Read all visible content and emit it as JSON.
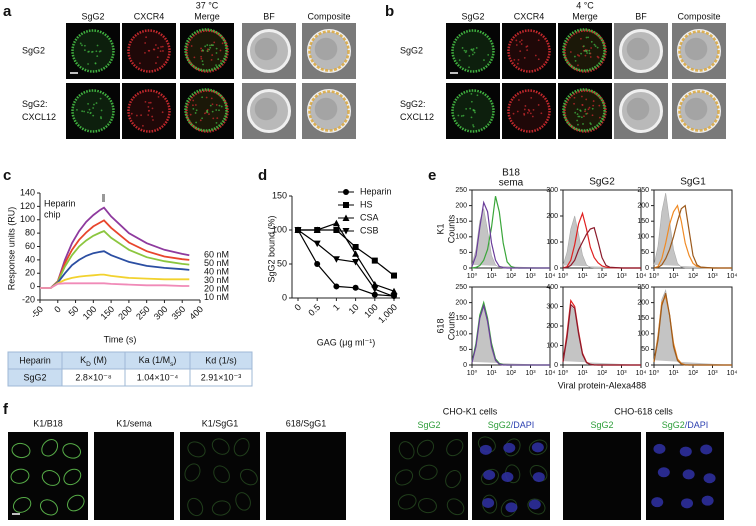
{
  "panels": {
    "a": {
      "letter": "a",
      "temperature": "37 °C",
      "columns": [
        "SgG2",
        "CXCR4",
        "Merge",
        "BF",
        "Composite"
      ],
      "column_colors": [
        "#2e9e3a",
        "#d6203a",
        "#111111",
        "#111111",
        "#111111"
      ],
      "rows": [
        [
          "SgG2"
        ],
        [
          "SgG2:",
          "CXCL12"
        ]
      ]
    },
    "b": {
      "letter": "b",
      "temperature": "4 °C",
      "columns": [
        "SgG2",
        "CXCR4",
        "Merge",
        "BF",
        "Composite"
      ],
      "column_colors": [
        "#2e9e3a",
        "#d6203a",
        "#111111",
        "#111111",
        "#111111"
      ],
      "rows": [
        [
          "SgG2"
        ],
        [
          "SgG2:",
          "CXCL12"
        ]
      ]
    },
    "c": {
      "letter": "c",
      "table": {
        "header": [
          "Heparin",
          [
            "K",
            "D",
            " (M)"
          ],
          [
            "Ka (1/M",
            "s",
            ")"
          ],
          "Kd (1/s)"
        ],
        "rows": [
          [
            "SgG2",
            "2.8×10⁻⁸",
            "1.04×10⁻⁴",
            "2.91×10⁻³"
          ]
        ]
      }
    },
    "d": {
      "letter": "d"
    },
    "e": {
      "letter": "e",
      "row_labels": [
        "K1",
        "618"
      ],
      "y_label": "Counts",
      "x_label": "Viral protein-Alexa488"
    },
    "f": {
      "letter": "f",
      "images": [
        "K1/B18",
        "K1/sema",
        "K1/SgG1",
        "618/SgG1"
      ],
      "groups": [
        {
          "title": "CHO-K1 cells",
          "columns": [
            [
              "SgG2"
            ],
            [
              "SgG2",
              "/DAPI"
            ]
          ]
        },
        {
          "title": "CHO-618 cells",
          "columns": [
            [
              "SgG2"
            ],
            [
              "SgG2",
              "/DAPI"
            ]
          ]
        }
      ]
    }
  },
  "chart_data": [
    {
      "type": "line",
      "annotation": [
        "Heparin",
        "chip"
      ],
      "x_label": "Time (s)",
      "y_label": "Response units (RU)",
      "xlim": [
        -50,
        400
      ],
      "xticks": [
        -50,
        0,
        50,
        100,
        150,
        200,
        250,
        300,
        350,
        400
      ],
      "ylim": [
        -20,
        140
      ],
      "yticks": [
        -20,
        0,
        20,
        40,
        60,
        80,
        100,
        120,
        140
      ],
      "x": [
        -50,
        -20,
        0,
        20,
        40,
        60,
        80,
        100,
        120,
        130,
        150,
        200,
        250,
        300,
        350,
        370
      ],
      "series": [
        {
          "name": "60 nM",
          "color": "#8e3a9e",
          "values": [
            -2,
            -2,
            8,
            40,
            65,
            83,
            97,
            107,
            115,
            118,
            105,
            80,
            65,
            55,
            49,
            47
          ]
        },
        {
          "name": "50 nM",
          "color": "#e8452c",
          "values": [
            -2,
            -2,
            8,
            35,
            55,
            70,
            81,
            90,
            96,
            99,
            88,
            66,
            53,
            45,
            41,
            40
          ]
        },
        {
          "name": "40 nM",
          "color": "#8cc63f",
          "values": [
            -2,
            -2,
            7,
            30,
            47,
            60,
            69,
            76,
            81,
            83,
            73,
            55,
            44,
            38,
            34,
            33
          ]
        },
        {
          "name": "30 nM",
          "color": "#2b4ea2",
          "values": [
            -2,
            -2,
            6,
            20,
            32,
            40,
            46,
            50,
            52,
            53,
            47,
            37,
            31,
            28,
            26,
            25
          ]
        },
        {
          "name": "20 nM",
          "color": "#f2d22e",
          "values": [
            -2,
            -2,
            5,
            10,
            13,
            15,
            16,
            17,
            18,
            18,
            16,
            13,
            12,
            11,
            11,
            11
          ]
        },
        {
          "name": "10 nM",
          "color": "#f08ab8",
          "values": [
            -2,
            -2,
            4,
            5,
            5,
            5,
            5,
            5,
            5,
            5,
            4,
            3,
            2,
            2,
            1,
            1
          ]
        }
      ]
    },
    {
      "type": "line",
      "x_label": "GAG (μg ml⁻¹)",
      "y_label": "SgG2 bound (%)",
      "categories": [
        "0",
        "0.5",
        "1",
        "10",
        "100",
        "1,000"
      ],
      "ylim": [
        0,
        150
      ],
      "yticks": [
        0,
        50,
        100,
        150
      ],
      "legend": "upper right",
      "series": [
        {
          "name": "Heparin",
          "color": "#000000",
          "marker": "circle",
          "values": [
            100,
            50,
            17,
            15,
            5,
            3
          ]
        },
        {
          "name": "HS",
          "color": "#000000",
          "marker": "square",
          "values": [
            100,
            100,
            100,
            75,
            55,
            33
          ]
        },
        {
          "name": "CSA",
          "color": "#000000",
          "marker": "triangle-up",
          "values": [
            100,
            100,
            110,
            65,
            20,
            10
          ]
        },
        {
          "name": "CSB",
          "color": "#000000",
          "marker": "triangle-down",
          "values": [
            100,
            80,
            57,
            53,
            13,
            2
          ]
        }
      ]
    },
    {
      "type": "density",
      "log_x": true,
      "xlim": [
        1,
        10000
      ],
      "xticks": [
        {
          "value": 1,
          "label": "10⁰"
        },
        {
          "value": 10,
          "label": "10¹"
        },
        {
          "value": 100,
          "label": "10²"
        },
        {
          "value": 1000,
          "label": "10³"
        },
        {
          "value": 10000,
          "label": "10⁴"
        }
      ],
      "ylim": [
        0,
        250
      ],
      "yticks": [
        0,
        50,
        100,
        150,
        200,
        250
      ],
      "x": [
        1,
        1.6,
        2.5,
        4,
        6.3,
        10,
        16,
        25,
        40,
        63,
        100,
        160,
        250,
        1000,
        10000
      ],
      "series": [
        {
          "color": "#c4c4c4",
          "fill": true,
          "values": [
            10,
            60,
            150,
            190,
            120,
            40,
            10,
            2,
            0,
            0,
            0,
            0,
            0,
            0,
            0
          ]
        },
        {
          "name": "B18",
          "color": "#3aa63a",
          "values": [
            0,
            2,
            8,
            25,
            60,
            130,
            230,
            180,
            80,
            20,
            5,
            1,
            0,
            0,
            0
          ]
        },
        {
          "name": "sema",
          "color": "#6a3d9a",
          "values": [
            5,
            40,
            130,
            210,
            180,
            80,
            25,
            5,
            1,
            0,
            0,
            0,
            0,
            0,
            0
          ]
        }
      ]
    },
    {
      "type": "density",
      "log_x": true,
      "title": "SgG2",
      "title_color": "#d6203a",
      "xlim": [
        1,
        10000
      ],
      "xticks": [
        {
          "value": 1,
          "label": "10⁰"
        },
        {
          "value": 10,
          "label": "10¹"
        },
        {
          "value": 100,
          "label": "10²"
        },
        {
          "value": 1000,
          "label": "10³"
        },
        {
          "value": 10000,
          "label": "10⁴"
        }
      ],
      "ylim": [
        0,
        300
      ],
      "yticks": [
        0,
        100,
        200,
        300
      ],
      "x": [
        1,
        1.6,
        2.5,
        4,
        6.3,
        10,
        16,
        25,
        40,
        63,
        100,
        160,
        250,
        1000,
        10000
      ],
      "series": [
        {
          "color": "#c4c4c4",
          "fill": true,
          "values": [
            10,
            60,
            150,
            200,
            130,
            50,
            12,
            2,
            0,
            0,
            0,
            0,
            0,
            0,
            0
          ]
        },
        {
          "color": "#e02020",
          "values": [
            0,
            5,
            30,
            90,
            170,
            210,
            150,
            80,
            40,
            20,
            8,
            3,
            1,
            0,
            0
          ]
        },
        {
          "color": "#8b1a2b",
          "values": [
            0,
            2,
            10,
            30,
            70,
            100,
            130,
            150,
            155,
            100,
            40,
            10,
            3,
            0,
            0
          ]
        }
      ]
    },
    {
      "type": "density",
      "log_x": true,
      "title": "SgG1",
      "title_color": "#e07a1c",
      "xlim": [
        1,
        10000
      ],
      "xticks": [
        {
          "value": 1,
          "label": "10⁰"
        },
        {
          "value": 10,
          "label": "10¹"
        },
        {
          "value": 100,
          "label": "10²"
        },
        {
          "value": 1000,
          "label": "10³"
        },
        {
          "value": 10000,
          "label": "10⁴"
        }
      ],
      "ylim": [
        0,
        250
      ],
      "yticks": [
        0,
        50,
        100,
        150,
        200,
        250
      ],
      "x": [
        1,
        1.6,
        2.5,
        4,
        6.3,
        10,
        16,
        25,
        40,
        63,
        100,
        160,
        250,
        1000,
        10000
      ],
      "series": [
        {
          "color": "#c4c4c4",
          "fill": true,
          "values": [
            10,
            70,
            180,
            240,
            150,
            60,
            15,
            3,
            0,
            0,
            0,
            0,
            0,
            0,
            0
          ]
        },
        {
          "color": "#f08a24",
          "values": [
            0,
            5,
            30,
            80,
            140,
            180,
            200,
            150,
            80,
            40,
            15,
            5,
            2,
            0,
            0
          ]
        },
        {
          "color": "#9c5a1c",
          "values": [
            0,
            2,
            10,
            30,
            60,
            100,
            150,
            190,
            200,
            120,
            40,
            10,
            3,
            0,
            0
          ]
        }
      ]
    },
    {
      "type": "density",
      "log_x": true,
      "xlim": [
        1,
        10000
      ],
      "xticks": [
        {
          "value": 1,
          "label": "10⁰"
        },
        {
          "value": 10,
          "label": "10¹"
        },
        {
          "value": 100,
          "label": "10²"
        },
        {
          "value": 1000,
          "label": "10³"
        },
        {
          "value": 10000,
          "label": "10⁴"
        }
      ],
      "ylim": [
        0,
        250
      ],
      "yticks": [
        0,
        50,
        100,
        150,
        200,
        250
      ],
      "x": [
        1,
        1.6,
        2.5,
        4,
        6.3,
        10,
        16,
        25,
        40,
        63,
        100,
        160,
        250,
        1000,
        10000
      ],
      "series": [
        {
          "color": "#c4c4c4",
          "fill": true,
          "values": [
            10,
            60,
            150,
            200,
            130,
            50,
            12,
            2,
            0,
            0,
            0,
            0,
            0,
            0,
            0
          ]
        },
        {
          "color": "#3aa63a",
          "values": [
            10,
            70,
            160,
            200,
            150,
            70,
            20,
            5,
            1,
            0,
            0,
            0,
            0,
            0,
            0
          ]
        },
        {
          "color": "#6a3d9a",
          "values": [
            8,
            60,
            150,
            190,
            140,
            60,
            15,
            3,
            0,
            0,
            0,
            0,
            0,
            0,
            0
          ]
        }
      ]
    },
    {
      "type": "density",
      "log_x": true,
      "xlim": [
        1,
        10000
      ],
      "xticks": [
        {
          "value": 1,
          "label": "10⁰"
        },
        {
          "value": 10,
          "label": "10¹"
        },
        {
          "value": 100,
          "label": "10²"
        },
        {
          "value": 1000,
          "label": "10³"
        },
        {
          "value": 10000,
          "label": "10⁴"
        }
      ],
      "ylim": [
        0,
        400
      ],
      "yticks": [
        0,
        100,
        200,
        300,
        400
      ],
      "x": [
        1,
        1.6,
        2.5,
        4,
        6.3,
        10,
        16,
        25,
        40,
        63,
        100,
        160,
        250,
        1000,
        10000
      ],
      "series": [
        {
          "color": "#c4c4c4",
          "fill": true,
          "values": [
            20,
            150,
            300,
            280,
            150,
            50,
            10,
            2,
            0,
            0,
            0,
            0,
            0,
            0,
            0
          ]
        },
        {
          "color": "#e02020",
          "values": [
            20,
            160,
            330,
            300,
            170,
            60,
            15,
            3,
            1,
            0,
            0,
            0,
            0,
            0,
            0
          ]
        },
        {
          "color": "#8b1a2b",
          "values": [
            15,
            140,
            310,
            290,
            160,
            55,
            12,
            3,
            0,
            0,
            0,
            0,
            0,
            0,
            0
          ]
        }
      ]
    },
    {
      "type": "density",
      "log_x": true,
      "xlim": [
        1,
        10000
      ],
      "xticks": [
        {
          "value": 1,
          "label": "10⁰"
        },
        {
          "value": 10,
          "label": "10¹"
        },
        {
          "value": 100,
          "label": "10²"
        },
        {
          "value": 1000,
          "label": "10³"
        },
        {
          "value": 10000,
          "label": "10⁴"
        }
      ],
      "ylim": [
        0,
        250
      ],
      "yticks": [
        0,
        50,
        100,
        150,
        200,
        250
      ],
      "x": [
        1,
        1.6,
        2.5,
        4,
        6.3,
        10,
        16,
        25,
        40,
        63,
        100,
        160,
        250,
        1000,
        10000
      ],
      "series": [
        {
          "color": "#c4c4c4",
          "fill": true,
          "values": [
            15,
            100,
            210,
            240,
            150,
            50,
            12,
            2,
            0,
            0,
            0,
            0,
            0,
            0,
            0
          ]
        },
        {
          "color": "#f08a24",
          "values": [
            10,
            90,
            200,
            220,
            160,
            70,
            20,
            5,
            1,
            0,
            0,
            0,
            0,
            0,
            0
          ]
        },
        {
          "color": "#9c5a1c",
          "values": [
            10,
            80,
            190,
            230,
            160,
            60,
            15,
            3,
            0,
            0,
            0,
            0,
            0,
            0,
            0
          ]
        }
      ]
    }
  ]
}
